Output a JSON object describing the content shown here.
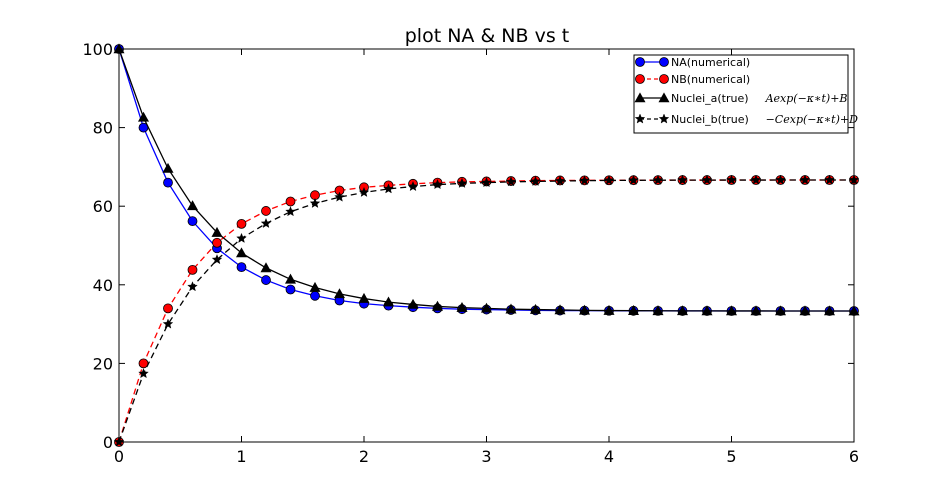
{
  "chart_data": {
    "type": "line",
    "title": "plot NA & NB vs t",
    "xlabel": "",
    "ylabel": "",
    "xlim": [
      0,
      6
    ],
    "ylim": [
      0,
      100
    ],
    "xticks": [
      0,
      1,
      2,
      3,
      4,
      5,
      6
    ],
    "yticks": [
      0,
      20,
      40,
      60,
      80,
      100
    ],
    "grid": false,
    "legend_position": "top-right",
    "x": [
      0,
      0.2,
      0.4,
      0.6,
      0.8,
      1.0,
      1.2,
      1.4,
      1.6,
      1.8,
      2.0,
      2.2,
      2.4,
      2.6,
      2.8,
      3.0,
      3.2,
      3.4,
      3.6,
      3.8,
      4.0,
      4.2,
      4.4,
      4.6,
      4.8,
      5.0,
      5.2,
      5.4,
      5.6,
      5.8,
      6.0
    ],
    "series": [
      {
        "name": "NA(numerical)",
        "math": "",
        "color": "#0000ff",
        "marker": "circle",
        "linestyle": "solid",
        "values": [
          100,
          80.0,
          66.0,
          56.2,
          49.3,
          44.5,
          41.2,
          38.8,
          37.2,
          36.0,
          35.2,
          34.7,
          34.3,
          34.0,
          33.8,
          33.7,
          33.6,
          33.5,
          33.45,
          33.42,
          33.4,
          33.38,
          33.36,
          33.35,
          33.35,
          33.34,
          33.34,
          33.34,
          33.33,
          33.33,
          33.33
        ]
      },
      {
        "name": "NB(numerical)",
        "math": "",
        "color": "#ff0000",
        "marker": "circle",
        "linestyle": "dashed",
        "values": [
          0,
          20.0,
          34.0,
          43.8,
          50.7,
          55.5,
          58.8,
          61.2,
          62.8,
          64.0,
          64.8,
          65.3,
          65.7,
          66.0,
          66.2,
          66.3,
          66.4,
          66.5,
          66.55,
          66.58,
          66.6,
          66.62,
          66.64,
          66.65,
          66.65,
          66.66,
          66.66,
          66.66,
          66.67,
          66.67,
          66.67
        ]
      },
      {
        "name": "Nuclei_a(true)",
        "math": "Aexp(−κ∗t)+B",
        "color": "#000000",
        "marker": "triangle",
        "linestyle": "solid",
        "values": [
          100,
          82.6,
          69.6,
          60.1,
          53.3,
          48.1,
          44.3,
          41.4,
          39.3,
          37.7,
          36.5,
          35.6,
          35.0,
          34.5,
          34.2,
          34.0,
          33.8,
          33.7,
          33.6,
          33.5,
          33.45,
          33.42,
          33.39,
          33.37,
          33.36,
          33.35,
          33.35,
          33.34,
          33.34,
          33.34,
          33.33
        ]
      },
      {
        "name": "Nuclei_b(true)",
        "math": "−Cexp(−κ∗t)+D",
        "color": "#000000",
        "marker": "star",
        "linestyle": "dashed",
        "values": [
          0,
          17.4,
          30.0,
          39.5,
          46.4,
          51.8,
          55.6,
          58.6,
          60.7,
          62.3,
          63.5,
          64.4,
          65.0,
          65.5,
          65.8,
          66.0,
          66.2,
          66.3,
          66.4,
          66.5,
          66.55,
          66.58,
          66.61,
          66.63,
          66.64,
          66.65,
          66.65,
          66.66,
          66.66,
          66.66,
          66.67
        ]
      }
    ]
  }
}
